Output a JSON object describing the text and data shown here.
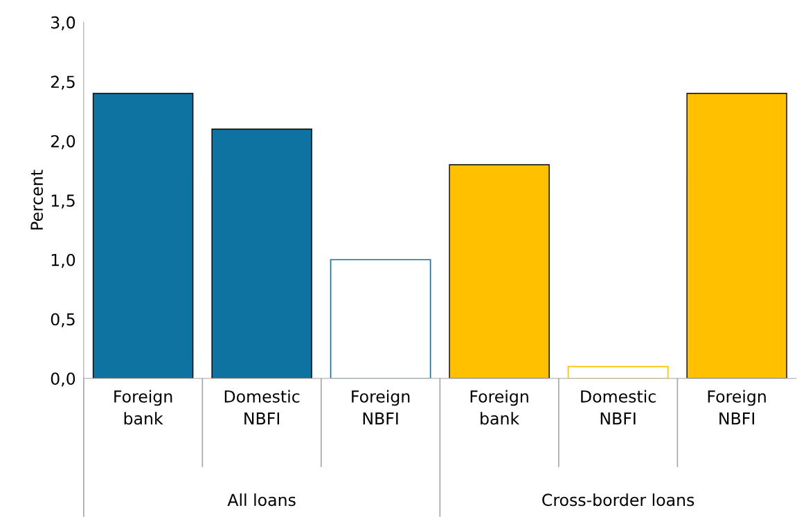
{
  "chart_data": {
    "type": "bar",
    "ylabel": "Percent",
    "categories": [
      "Foreign\nbank",
      "Domestic\nNBFI",
      "Foreign\nNBFI",
      "Foreign\nbank",
      "Domestic\nNBFI",
      "Foreign\nNBFI"
    ],
    "values": [
      2.4,
      2.1,
      1.0,
      1.8,
      0.1,
      2.4
    ],
    "colors": [
      "#0e73a0",
      "#0e73a0",
      "#ffffff",
      "#ffc000",
      "#ffffff",
      "#ffc000"
    ],
    "ylim": [
      0,
      3.0
    ],
    "yticks": [
      {
        "value": 0,
        "label": "0,0"
      },
      {
        "value": 0.5,
        "label": "0,5"
      },
      {
        "value": 1.0,
        "label": "1,0"
      },
      {
        "value": 1.5,
        "label": "1,5"
      },
      {
        "value": 2.0,
        "label": "2,0"
      },
      {
        "value": 2.5,
        "label": "2,5"
      },
      {
        "value": 3.0,
        "label": "3,0"
      }
    ],
    "annotations": [
      "All loans",
      "Cross-border loans"
    ],
    "grid": false,
    "legend": false
  }
}
